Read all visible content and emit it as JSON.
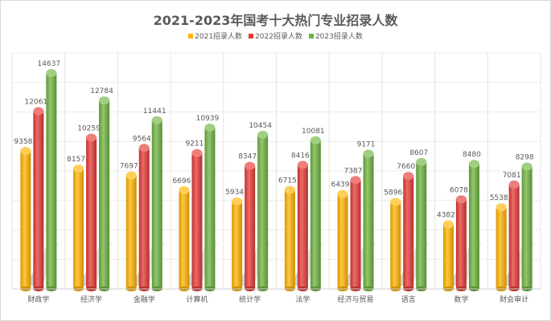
{
  "chart_data": {
    "type": "bar",
    "title": "2021-2023年国考十大热门专业招录人数",
    "xlabel": "",
    "ylabel": "",
    "ylim": [
      0,
      16000
    ],
    "grid": true,
    "legend_position": "top",
    "categories": [
      "财政学",
      "经济学",
      "金融学",
      "计算机",
      "统计学",
      "法学",
      "经济与贸易",
      "语言",
      "数学",
      "财会审计"
    ],
    "series": [
      {
        "name": "2021招录人数",
        "color": "#FFB300",
        "values": [
          9358,
          8157,
          7697,
          6696,
          5934,
          6715,
          6439,
          5896,
          4382,
          5538
        ]
      },
      {
        "name": "2022招录人数",
        "color": "#E53935",
        "values": [
          12061,
          10259,
          9564,
          9211,
          8347,
          8416,
          7387,
          7660,
          6078,
          7081
        ]
      },
      {
        "name": "2023招录人数",
        "color": "#6DB33F",
        "values": [
          14637,
          12784,
          11441,
          10939,
          10454,
          10081,
          9171,
          8607,
          8480,
          8298
        ]
      }
    ]
  }
}
